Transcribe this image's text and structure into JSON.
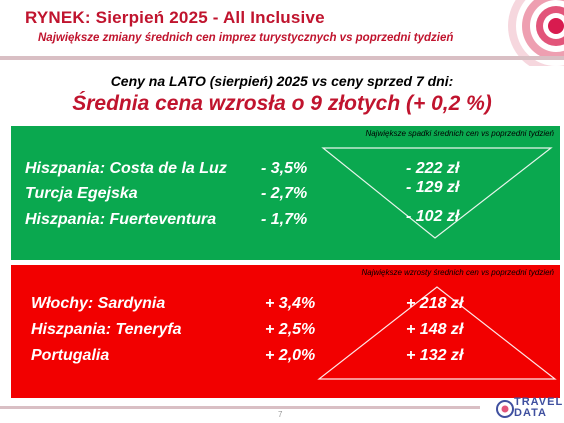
{
  "header": {
    "title": "RYNEK: Sierpień 2025 - All Inclusive",
    "subtitle": "Największe zmiany średnich cen imprez turystycznych vs poprzedni tydzień"
  },
  "summary": {
    "line1": "Ceny na LATO (sierpień) 2025 vs ceny sprzed 7 dni:",
    "line2": "Średnia cena wzrosła o 9 złotych (+ 0,2 %)"
  },
  "decreases": {
    "caption": "Największe spadki średnich cen vs poprzedni tydzień",
    "color": "#0aa84f",
    "rows": [
      {
        "destination": "Hiszpania: Costa de la Luz",
        "percent": "- 3,5%",
        "amount": "- 222 zł"
      },
      {
        "destination": "Turcja Egejska",
        "percent": "- 2,7%",
        "amount": "- 129 zł"
      },
      {
        "destination": "Hiszpania: Fuerteventura",
        "percent": "- 1,7%",
        "amount": "- 102 zł"
      }
    ]
  },
  "increases": {
    "caption": "Największe wzrosty średnich cen vs poprzedni tydzień",
    "color": "#f20000",
    "rows": [
      {
        "destination": "Włochy: Sardynia",
        "percent": "+ 3,4%",
        "amount": "+ 218 zł"
      },
      {
        "destination": "Hiszpania: Teneryfa",
        "percent": "+ 2,5%",
        "amount": "+ 148 zł"
      },
      {
        "destination": "Portugalia",
        "percent": "+ 2,0%",
        "amount": "+ 132 zł"
      }
    ]
  },
  "footer": {
    "page_number": "7",
    "logo_line1": "TRAVEL",
    "logo_line2": "DATA"
  },
  "colors": {
    "accent": "#c0142e",
    "logo": "#3f4f9f"
  }
}
